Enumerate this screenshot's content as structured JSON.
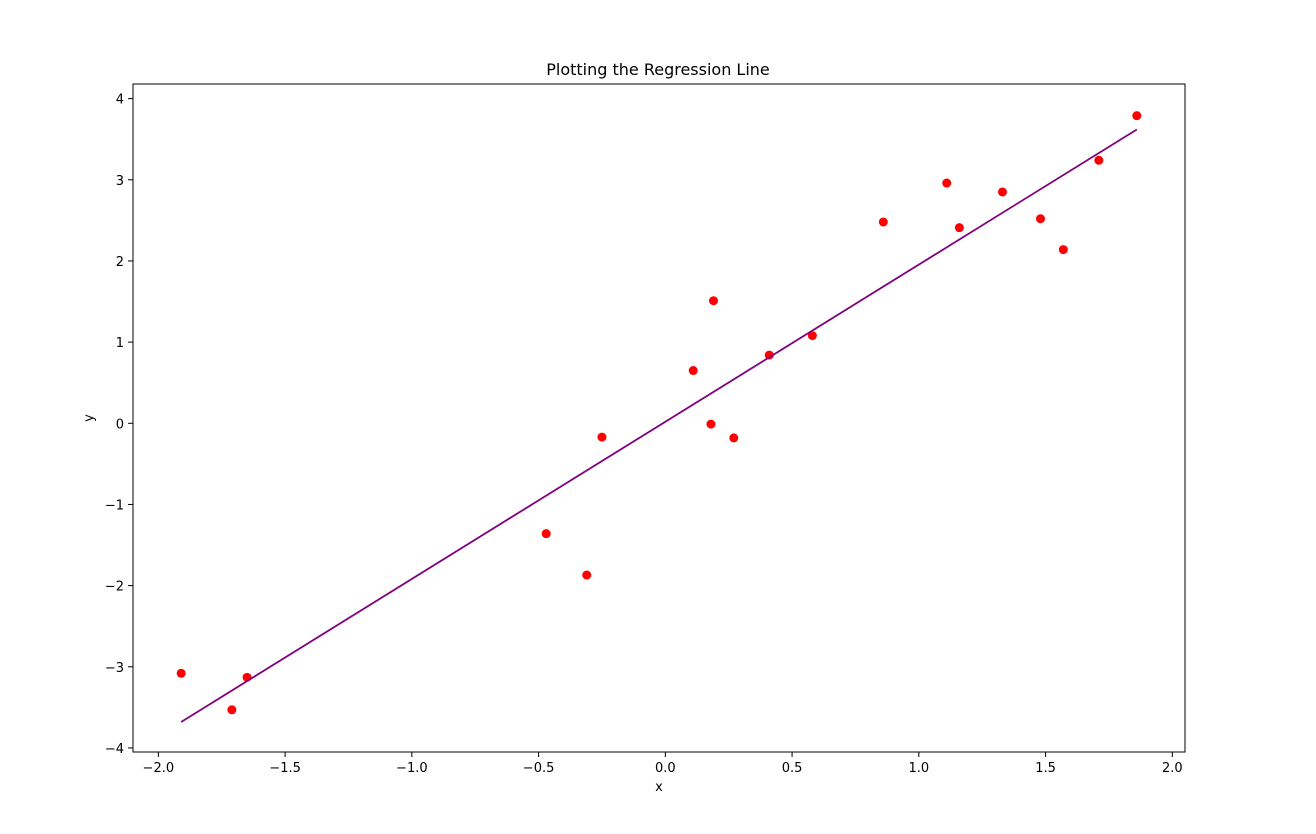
{
  "chart_data": {
    "type": "scatter",
    "title": "Plotting the Regression Line",
    "xlabel": "x",
    "ylabel": "y",
    "xlim": [
      -2.1,
      2.05
    ],
    "ylim": [
      -4.05,
      4.18
    ],
    "x_ticks": [
      -2.0,
      -1.5,
      -1.0,
      -0.5,
      0.0,
      0.5,
      1.0,
      1.5,
      2.0
    ],
    "y_ticks": [
      -4,
      -3,
      -2,
      -1,
      0,
      1,
      2,
      3,
      4
    ],
    "x_tick_labels": [
      "−2.0",
      "−1.5",
      "−1.0",
      "−0.5",
      "0.0",
      "0.5",
      "1.0",
      "1.5",
      "2.0"
    ],
    "y_tick_labels": [
      "−4",
      "−3",
      "−2",
      "−1",
      "0",
      "1",
      "2",
      "3",
      "4"
    ],
    "grid": false,
    "series": [
      {
        "kind": "scatter",
        "color": "#ff0000",
        "x": [
          -1.91,
          -1.71,
          -1.65,
          -0.47,
          -0.31,
          -0.25,
          0.11,
          0.18,
          0.19,
          0.27,
          0.41,
          0.58,
          0.86,
          1.11,
          1.16,
          1.33,
          1.48,
          1.57,
          1.71,
          1.86
        ],
        "y": [
          -3.08,
          -3.53,
          -3.13,
          -1.36,
          -1.87,
          -0.17,
          0.65,
          -0.01,
          1.51,
          -0.18,
          0.84,
          1.08,
          2.48,
          2.96,
          2.41,
          2.85,
          2.52,
          2.14,
          3.24,
          3.79
        ]
      },
      {
        "kind": "line",
        "color": "#800080",
        "x": [
          -1.91,
          1.86
        ],
        "y": [
          -3.68,
          3.62
        ]
      }
    ]
  }
}
